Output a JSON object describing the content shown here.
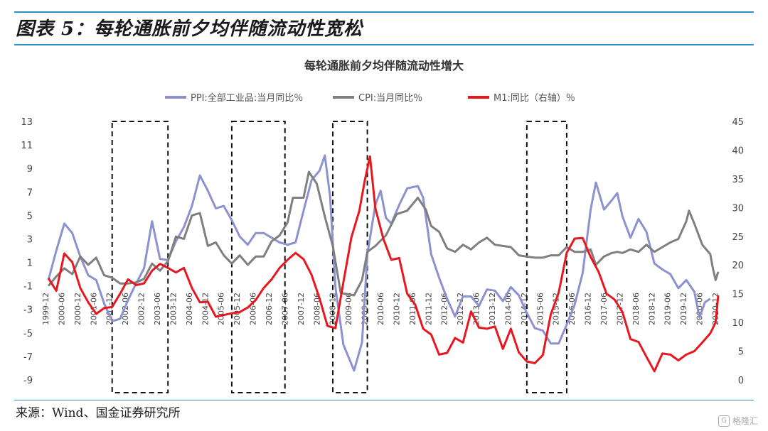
{
  "header": {
    "title": "图表 5：每轮通胀前夕均伴随流动性宽松"
  },
  "footer": {
    "source": "来源：Wind、国金证券研究所",
    "watermark": "格隆汇"
  },
  "chart_data": {
    "type": "line",
    "title": "每轮通胀前夕均伴随流动性增大",
    "legend_position": "top",
    "series": [
      {
        "name": "PPI:全部工业品:当月同比％",
        "axis": "left",
        "color": "#8c92cf",
        "points": [
          [
            "1999-12",
            -0.5
          ],
          [
            "2000-03",
            2.0
          ],
          [
            "2000-06",
            4.3
          ],
          [
            "2000-09",
            3.5
          ],
          [
            "2000-12",
            1.5
          ],
          [
            "2001-03",
            -0.1
          ],
          [
            "2001-06",
            -0.5
          ],
          [
            "2001-09",
            -2.5
          ],
          [
            "2001-12",
            -4.0
          ],
          [
            "2002-03",
            -3.8
          ],
          [
            "2002-06",
            -2.2
          ],
          [
            "2002-09",
            -0.8
          ],
          [
            "2002-12",
            0.5
          ],
          [
            "2003-03",
            4.5
          ],
          [
            "2003-06",
            1.3
          ],
          [
            "2003-09",
            1.2
          ],
          [
            "2003-12",
            2.8
          ],
          [
            "2004-03",
            4.0
          ],
          [
            "2004-06",
            5.8
          ],
          [
            "2004-09",
            8.4
          ],
          [
            "2004-12",
            7.1
          ],
          [
            "2005-03",
            5.6
          ],
          [
            "2005-06",
            5.8
          ],
          [
            "2005-09",
            4.6
          ],
          [
            "2005-12",
            3.2
          ],
          [
            "2006-03",
            2.5
          ],
          [
            "2006-06",
            3.5
          ],
          [
            "2006-09",
            3.5
          ],
          [
            "2006-12",
            3.1
          ],
          [
            "2007-03",
            2.7
          ],
          [
            "2007-06",
            2.5
          ],
          [
            "2007-09",
            2.7
          ],
          [
            "2007-12",
            5.4
          ],
          [
            "2008-03",
            8.0
          ],
          [
            "2008-06",
            8.8
          ],
          [
            "2008-08",
            10.1
          ],
          [
            "2008-10",
            6.6
          ],
          [
            "2008-12",
            -1.1
          ],
          [
            "2009-03",
            -6.0
          ],
          [
            "2009-07",
            -8.2
          ],
          [
            "2009-10",
            -5.8
          ],
          [
            "2009-12",
            1.7
          ],
          [
            "2010-03",
            5.9
          ],
          [
            "2010-05",
            7.1
          ],
          [
            "2010-07",
            4.8
          ],
          [
            "2010-09",
            4.3
          ],
          [
            "2010-12",
            5.9
          ],
          [
            "2011-03",
            7.3
          ],
          [
            "2011-07",
            7.5
          ],
          [
            "2011-09",
            6.5
          ],
          [
            "2011-12",
            1.7
          ],
          [
            "2012-03",
            -0.3
          ],
          [
            "2012-06",
            -2.1
          ],
          [
            "2012-09",
            -3.6
          ],
          [
            "2012-12",
            -1.9
          ],
          [
            "2013-03",
            -1.9
          ],
          [
            "2013-06",
            -2.7
          ],
          [
            "2013-09",
            -1.3
          ],
          [
            "2013-12",
            -1.4
          ],
          [
            "2014-03",
            -2.3
          ],
          [
            "2014-06",
            -1.1
          ],
          [
            "2014-09",
            -1.8
          ],
          [
            "2014-12",
            -3.3
          ],
          [
            "2015-03",
            -4.6
          ],
          [
            "2015-06",
            -4.8
          ],
          [
            "2015-09",
            -5.9
          ],
          [
            "2015-12",
            -5.9
          ],
          [
            "2016-03",
            -4.3
          ],
          [
            "2016-06",
            -2.6
          ],
          [
            "2016-09",
            0.1
          ],
          [
            "2016-12",
            5.5
          ],
          [
            "2017-02",
            7.8
          ],
          [
            "2017-05",
            5.5
          ],
          [
            "2017-08",
            6.3
          ],
          [
            "2017-10",
            6.9
          ],
          [
            "2017-12",
            4.9
          ],
          [
            "2018-03",
            3.1
          ],
          [
            "2018-06",
            4.7
          ],
          [
            "2018-09",
            3.6
          ],
          [
            "2018-12",
            0.9
          ],
          [
            "2019-03",
            0.4
          ],
          [
            "2019-06",
            0.0
          ],
          [
            "2019-09",
            -1.2
          ],
          [
            "2019-12",
            -0.5
          ],
          [
            "2020-03",
            -1.5
          ],
          [
            "2020-05",
            -3.7
          ],
          [
            "2020-07",
            -2.4
          ],
          [
            "2020-09",
            -2.1
          ]
        ]
      },
      {
        "name": "CPI:当月同比％",
        "axis": "left",
        "color": "#7f7f7f",
        "points": [
          [
            "1999-12",
            -1.0
          ],
          [
            "2000-03",
            -0.2
          ],
          [
            "2000-06",
            0.5
          ],
          [
            "2000-09",
            0.0
          ],
          [
            "2000-12",
            1.5
          ],
          [
            "2001-03",
            0.8
          ],
          [
            "2001-06",
            1.4
          ],
          [
            "2001-09",
            -0.1
          ],
          [
            "2001-12",
            -0.3
          ],
          [
            "2002-03",
            -0.8
          ],
          [
            "2002-06",
            -0.8
          ],
          [
            "2002-09",
            -0.7
          ],
          [
            "2002-12",
            -0.4
          ],
          [
            "2003-03",
            0.9
          ],
          [
            "2003-06",
            0.3
          ],
          [
            "2003-09",
            1.1
          ],
          [
            "2003-12",
            3.2
          ],
          [
            "2004-03",
            3.0
          ],
          [
            "2004-06",
            5.0
          ],
          [
            "2004-09",
            5.2
          ],
          [
            "2004-12",
            2.4
          ],
          [
            "2005-03",
            2.7
          ],
          [
            "2005-06",
            1.6
          ],
          [
            "2005-09",
            0.9
          ],
          [
            "2005-12",
            1.6
          ],
          [
            "2006-03",
            0.8
          ],
          [
            "2006-06",
            1.5
          ],
          [
            "2006-09",
            1.5
          ],
          [
            "2006-12",
            2.8
          ],
          [
            "2007-03",
            3.3
          ],
          [
            "2007-06",
            4.4
          ],
          [
            "2007-08",
            6.5
          ],
          [
            "2007-10",
            6.5
          ],
          [
            "2007-12",
            6.5
          ],
          [
            "2008-02",
            8.7
          ],
          [
            "2008-05",
            7.7
          ],
          [
            "2008-08",
            4.9
          ],
          [
            "2008-11",
            2.4
          ],
          [
            "2009-02",
            -1.6
          ],
          [
            "2009-07",
            -1.8
          ],
          [
            "2009-10",
            -0.5
          ],
          [
            "2009-12",
            1.9
          ],
          [
            "2010-03",
            2.4
          ],
          [
            "2010-07",
            3.3
          ],
          [
            "2010-11",
            5.1
          ],
          [
            "2011-03",
            5.4
          ],
          [
            "2011-07",
            6.5
          ],
          [
            "2011-10",
            5.5
          ],
          [
            "2011-12",
            4.1
          ],
          [
            "2012-03",
            3.6
          ],
          [
            "2012-06",
            2.2
          ],
          [
            "2012-09",
            1.9
          ],
          [
            "2012-12",
            2.5
          ],
          [
            "2013-03",
            2.1
          ],
          [
            "2013-06",
            2.7
          ],
          [
            "2013-09",
            3.1
          ],
          [
            "2013-12",
            2.5
          ],
          [
            "2014-03",
            2.4
          ],
          [
            "2014-06",
            2.3
          ],
          [
            "2014-09",
            1.6
          ],
          [
            "2014-12",
            1.5
          ],
          [
            "2015-03",
            1.4
          ],
          [
            "2015-06",
            1.4
          ],
          [
            "2015-09",
            1.6
          ],
          [
            "2015-12",
            1.6
          ],
          [
            "2016-03",
            2.3
          ],
          [
            "2016-06",
            1.9
          ],
          [
            "2016-09",
            1.9
          ],
          [
            "2016-12",
            2.1
          ],
          [
            "2017-02",
            0.8
          ],
          [
            "2017-05",
            1.5
          ],
          [
            "2017-08",
            1.8
          ],
          [
            "2017-10",
            1.9
          ],
          [
            "2017-12",
            1.8
          ],
          [
            "2018-03",
            2.1
          ],
          [
            "2018-06",
            1.9
          ],
          [
            "2018-09",
            2.5
          ],
          [
            "2018-12",
            1.9
          ],
          [
            "2019-03",
            2.3
          ],
          [
            "2019-06",
            2.7
          ],
          [
            "2019-09",
            3.0
          ],
          [
            "2019-12",
            4.5
          ],
          [
            "2020-01",
            5.4
          ],
          [
            "2020-03",
            4.3
          ],
          [
            "2020-06",
            2.5
          ],
          [
            "2020-09",
            1.7
          ],
          [
            "2020-10",
            0.5
          ],
          [
            "2020-11",
            -0.5
          ],
          [
            "2020-12",
            0.2
          ]
        ]
      },
      {
        "name": "M1:同比（右轴）％",
        "axis": "right",
        "color": "#e8171f",
        "points": [
          [
            "1999-12",
            17.7
          ],
          [
            "2000-03",
            15.5
          ],
          [
            "2000-06",
            22.0
          ],
          [
            "2000-09",
            20.5
          ],
          [
            "2000-12",
            16.0
          ],
          [
            "2001-03",
            13.5
          ],
          [
            "2001-06",
            11.5
          ],
          [
            "2001-09",
            12.5
          ],
          [
            "2001-12",
            12.7
          ],
          [
            "2002-03",
            15.0
          ],
          [
            "2002-06",
            17.5
          ],
          [
            "2002-09",
            16.5
          ],
          [
            "2002-12",
            16.8
          ],
          [
            "2003-03",
            19.0
          ],
          [
            "2003-06",
            20.2
          ],
          [
            "2003-09",
            19.5
          ],
          [
            "2003-12",
            18.7
          ],
          [
            "2004-03",
            19.5
          ],
          [
            "2004-06",
            16.0
          ],
          [
            "2004-09",
            13.5
          ],
          [
            "2004-12",
            13.6
          ],
          [
            "2005-03",
            11.0
          ],
          [
            "2005-06",
            11.3
          ],
          [
            "2005-09",
            11.6
          ],
          [
            "2005-12",
            11.8
          ],
          [
            "2006-03",
            12.6
          ],
          [
            "2006-06",
            13.9
          ],
          [
            "2006-09",
            16.0
          ],
          [
            "2006-12",
            17.5
          ],
          [
            "2007-03",
            19.5
          ],
          [
            "2007-06",
            20.9
          ],
          [
            "2007-09",
            22.1
          ],
          [
            "2007-12",
            21.0
          ],
          [
            "2008-03",
            18.3
          ],
          [
            "2008-06",
            14.2
          ],
          [
            "2008-09",
            9.4
          ],
          [
            "2008-12",
            9.0
          ],
          [
            "2009-03",
            17.0
          ],
          [
            "2009-06",
            24.8
          ],
          [
            "2009-09",
            29.5
          ],
          [
            "2009-11",
            34.6
          ],
          [
            "2010-01",
            38.9
          ],
          [
            "2010-03",
            29.9
          ],
          [
            "2010-06",
            24.6
          ],
          [
            "2010-09",
            20.9
          ],
          [
            "2010-12",
            21.2
          ],
          [
            "2011-03",
            15.0
          ],
          [
            "2011-06",
            13.1
          ],
          [
            "2011-09",
            8.9
          ],
          [
            "2011-12",
            7.9
          ],
          [
            "2012-03",
            4.4
          ],
          [
            "2012-06",
            4.7
          ],
          [
            "2012-09",
            7.3
          ],
          [
            "2012-12",
            6.5
          ],
          [
            "2013-03",
            11.9
          ],
          [
            "2013-06",
            9.1
          ],
          [
            "2013-09",
            8.9
          ],
          [
            "2013-12",
            9.3
          ],
          [
            "2014-03",
            5.4
          ],
          [
            "2014-06",
            8.9
          ],
          [
            "2014-09",
            4.8
          ],
          [
            "2014-12",
            3.2
          ],
          [
            "2015-03",
            2.9
          ],
          [
            "2015-06",
            4.3
          ],
          [
            "2015-09",
            11.4
          ],
          [
            "2015-12",
            15.2
          ],
          [
            "2016-03",
            22.1
          ],
          [
            "2016-06",
            24.6
          ],
          [
            "2016-09",
            24.7
          ],
          [
            "2016-12",
            21.4
          ],
          [
            "2017-03",
            18.8
          ],
          [
            "2017-06",
            15.0
          ],
          [
            "2017-09",
            14.0
          ],
          [
            "2017-12",
            11.8
          ],
          [
            "2018-03",
            7.1
          ],
          [
            "2018-06",
            6.6
          ],
          [
            "2018-09",
            4.0
          ],
          [
            "2018-12",
            1.5
          ],
          [
            "2019-03",
            4.6
          ],
          [
            "2019-06",
            4.4
          ],
          [
            "2019-09",
            3.4
          ],
          [
            "2019-12",
            4.4
          ],
          [
            "2020-03",
            5.0
          ],
          [
            "2020-06",
            6.5
          ],
          [
            "2020-09",
            8.1
          ],
          [
            "2020-11",
            10.0
          ],
          [
            "2020-12",
            14.7
          ]
        ]
      }
    ],
    "left_axis": {
      "ylim": [
        -9,
        13
      ],
      "ticks": [
        "13",
        "11",
        "9",
        "7",
        "5",
        "3",
        "1",
        "-1",
        "-3",
        "-5",
        "-7",
        "-9"
      ]
    },
    "right_axis": {
      "ylim": [
        0,
        45
      ],
      "ticks": [
        "45",
        "40",
        "35",
        "30",
        "25",
        "20",
        "15",
        "10",
        "5",
        "0"
      ]
    },
    "x_ticks": [
      "1999-12",
      "2000-06",
      "2000-12",
      "2001-06",
      "2001-12",
      "2002-06",
      "2002-12",
      "2003-06",
      "2003-12",
      "2004-06",
      "2004-12",
      "2005-06",
      "2005-12",
      "2006-06",
      "2006-12",
      "2007-06",
      "2007-12",
      "2008-06",
      "2008-12",
      "2009-06",
      "2009-12",
      "2010-06",
      "2010-12",
      "2011-06",
      "2011-12",
      "2012-06",
      "2012-12",
      "2013-06",
      "2013-12",
      "2014-06",
      "2014-12",
      "2015-06",
      "2015-12",
      "2016-06",
      "2016-12",
      "2017-06",
      "2017-12",
      "2018-06",
      "2018-12",
      "2019-06",
      "2019-12",
      "2020-06",
      "2020-12"
    ],
    "x_range": [
      "1999-12",
      "2020-12"
    ],
    "highlight_periods": [
      [
        "2001-12",
        "2003-09"
      ],
      [
        "2005-09",
        "2007-05"
      ],
      [
        "2008-11",
        "2009-12"
      ],
      [
        "2014-12",
        "2016-03"
      ]
    ]
  }
}
